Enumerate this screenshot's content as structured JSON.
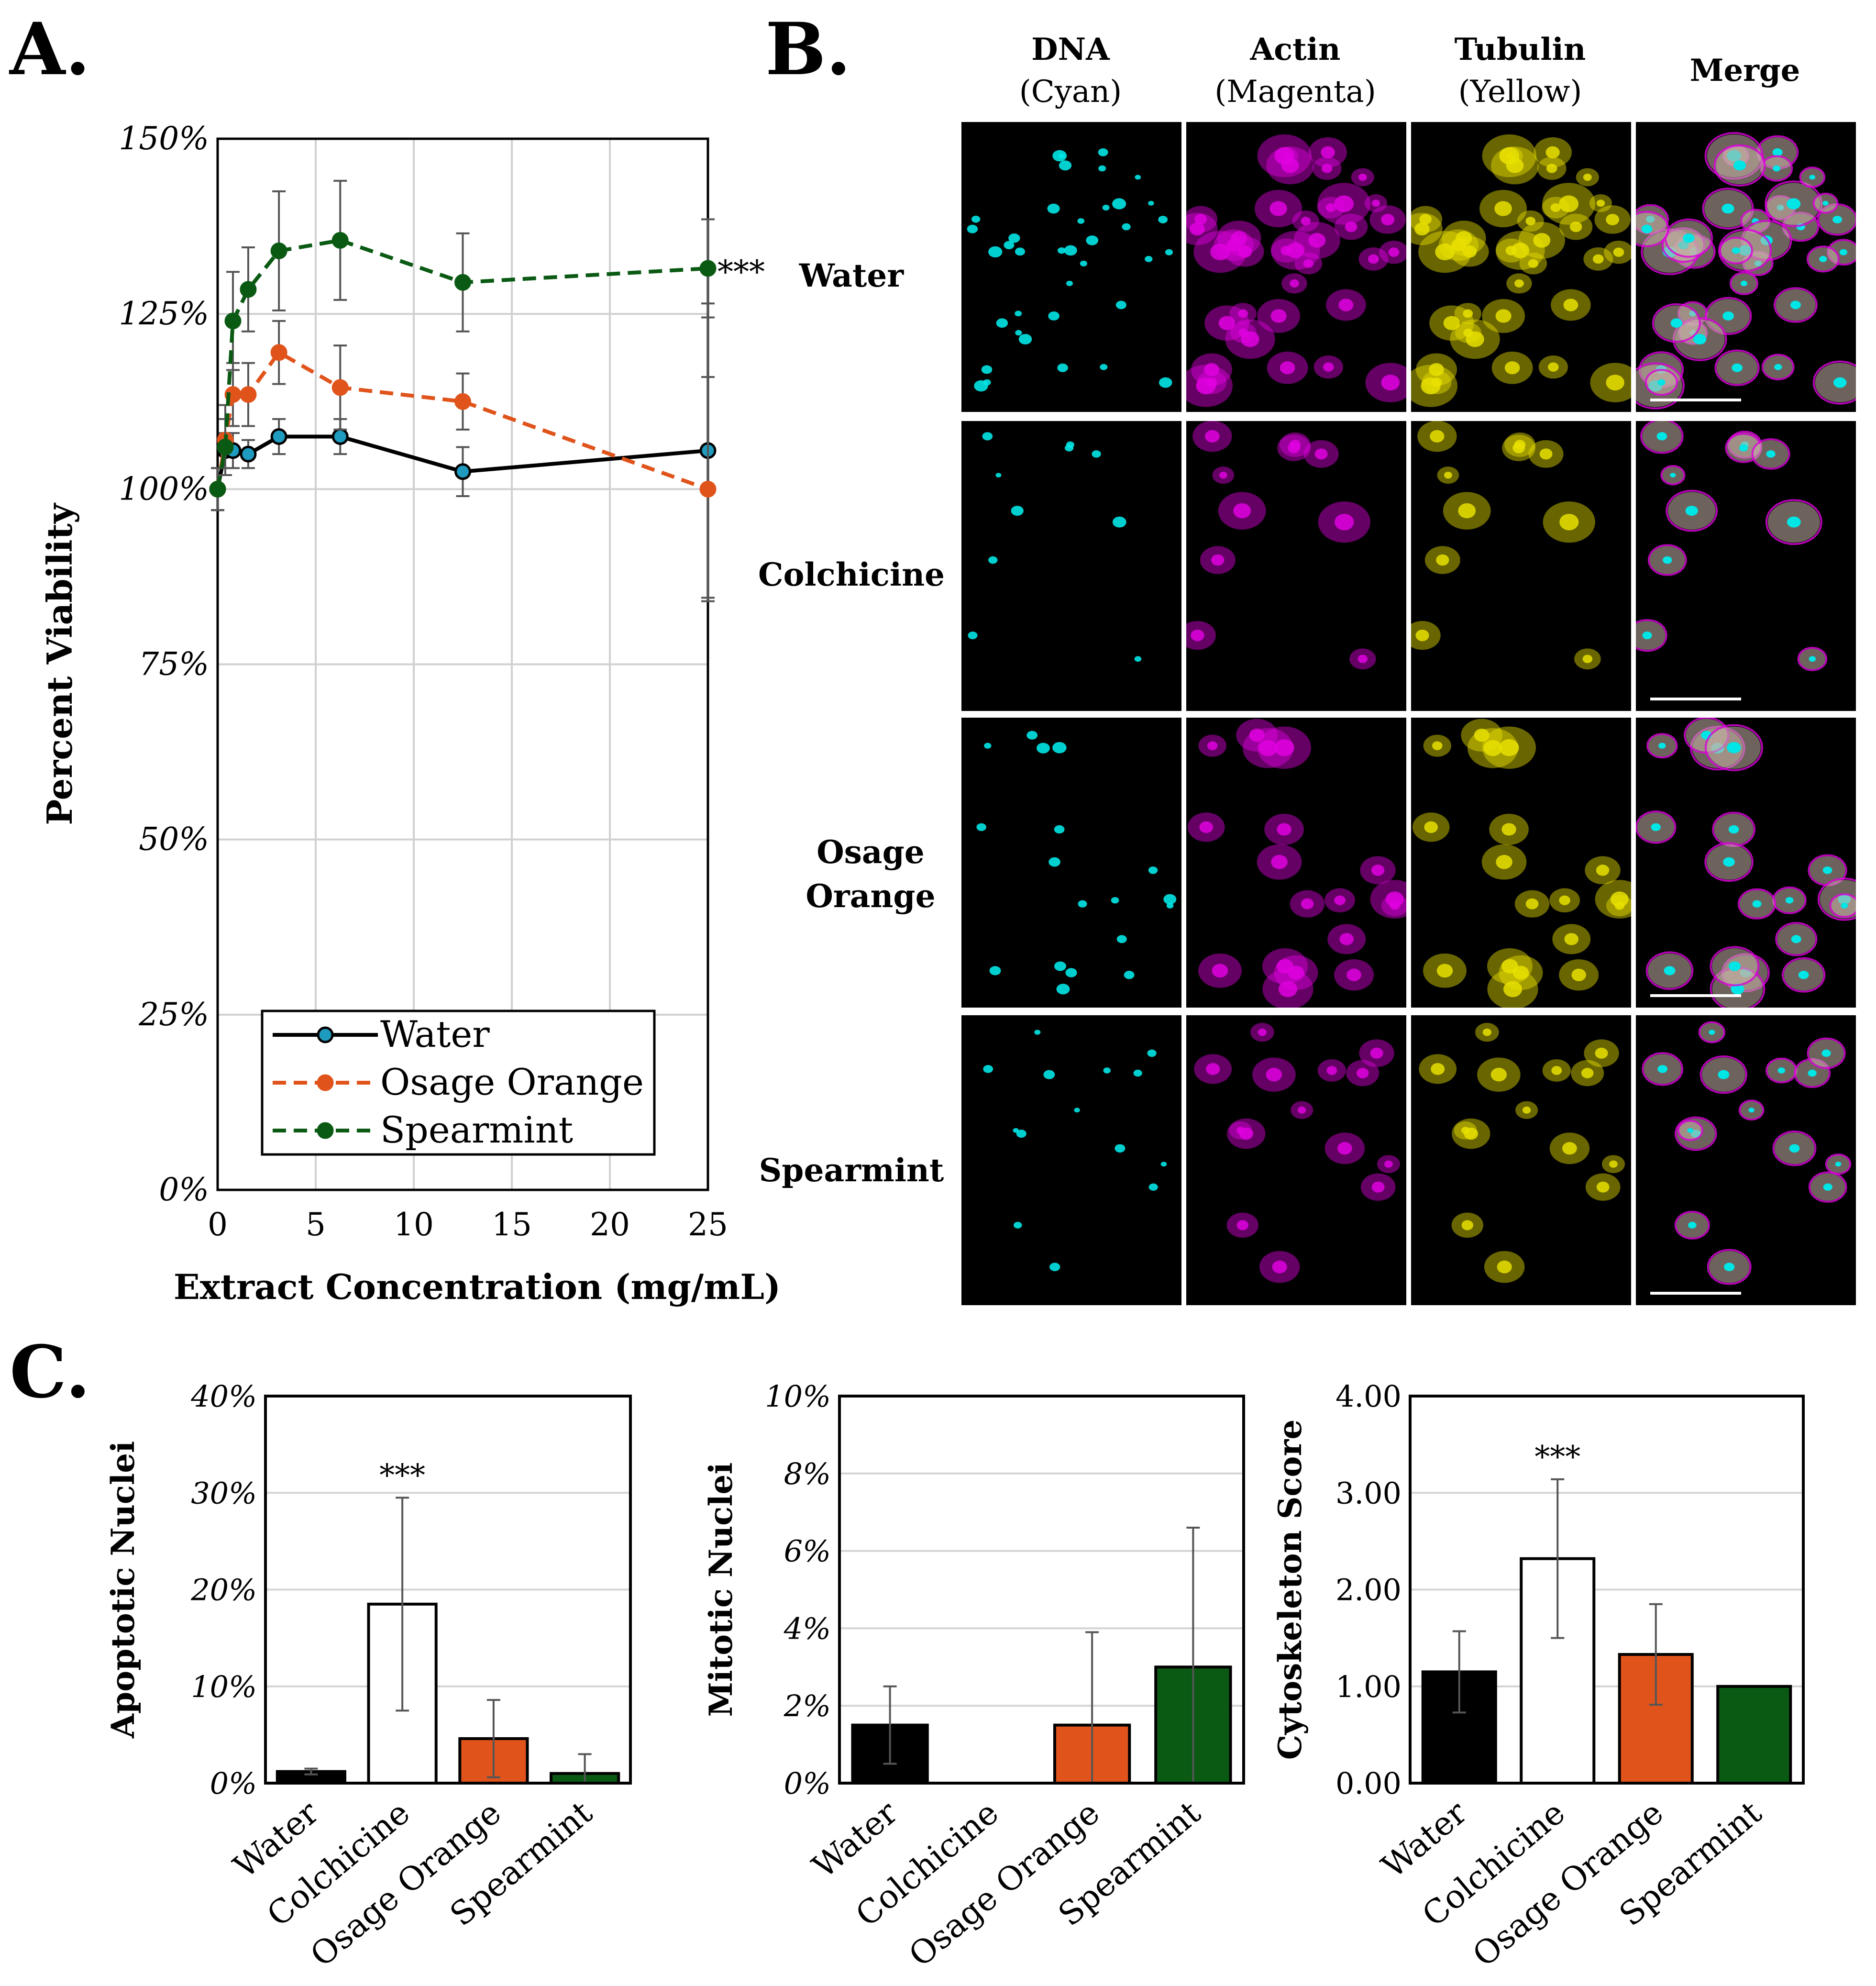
{
  "panel_labels": {
    "a": "A.",
    "b": "B.",
    "c": "C."
  },
  "microscopy": {
    "channels": [
      {
        "name": "DNA",
        "color_name": "(Cyan)",
        "color": "#00e5e5"
      },
      {
        "name": "Actin",
        "color_name": "(Magenta)",
        "color": "#e000e0"
      },
      {
        "name": "Tubulin",
        "color_name": "(Yellow)",
        "color": "#e8e000"
      },
      {
        "name": "Merge",
        "color_name": "",
        "color": "#ffffff"
      }
    ],
    "rows": [
      {
        "label": "Water"
      },
      {
        "label": "Colchicine"
      },
      {
        "label": "Osage Orange"
      },
      {
        "label": "Spearmint"
      }
    ]
  },
  "chart_data": [
    {
      "type": "line",
      "title": "",
      "xlabel": "Extract Concentration (mg/mL)",
      "ylabel": "Percent Viability",
      "xlim": [
        0,
        25
      ],
      "ylim": [
        0,
        150
      ],
      "xticks": [
        "0",
        "5",
        "10",
        "15",
        "20",
        "25"
      ],
      "yticks": [
        "0%",
        "25%",
        "50%",
        "75%",
        "100%",
        "125%",
        "150%"
      ],
      "grid": true,
      "legend_position": "bottom-left",
      "annotation": "***",
      "series": [
        {
          "name": "Water",
          "color": "#000000",
          "dash": "solid",
          "marker_fill": "#1f9bbf",
          "x": [
            0,
            0.39,
            0.78,
            1.56,
            3.125,
            6.25,
            12.5,
            25
          ],
          "y": [
            100,
            105.5,
            105.5,
            105,
            107.5,
            107.5,
            102.5,
            105.5
          ],
          "err": [
            3,
            2.5,
            2.5,
            2,
            2.5,
            2.5,
            3.5,
            21
          ]
        },
        {
          "name": "Osage Orange",
          "color": "#e0541c",
          "dash": "dashed",
          "marker_fill": "#e0541c",
          "x": [
            0,
            0.39,
            0.78,
            1.56,
            3.125,
            6.25,
            12.5,
            25
          ],
          "y": [
            100,
            107,
            113.5,
            113.5,
            119.5,
            114.5,
            112.5,
            100
          ],
          "err": [
            3,
            5,
            4.5,
            4.5,
            4.5,
            6,
            4,
            16
          ]
        },
        {
          "name": "Spearmint",
          "color": "#0b5a14",
          "dash": "dashed",
          "marker_fill": "#0b5a14",
          "x": [
            0,
            0.39,
            0.78,
            1.56,
            3.125,
            6.25,
            12.5,
            25
          ],
          "y": [
            100,
            106,
            124,
            128.5,
            134,
            135.5,
            129.5,
            131.5
          ],
          "err": [
            3,
            4,
            7,
            6,
            8.5,
            8.5,
            7,
            7
          ]
        }
      ]
    },
    {
      "type": "bar",
      "ylabel": "Apoptotic Nuclei",
      "categories": [
        "Water",
        "Colchicine",
        "Osage Orange",
        "Spearmint"
      ],
      "values": [
        1.2,
        18.5,
        4.6,
        1.0
      ],
      "errors": [
        0.3,
        11,
        4,
        2
      ],
      "bar_colors": [
        "#000000",
        "#ffffff",
        "#e0541c",
        "#0b5a14"
      ],
      "ylim": [
        0,
        40
      ],
      "yticks": [
        "0%",
        "10%",
        "20%",
        "30%",
        "40%"
      ],
      "annotation": "***"
    },
    {
      "type": "bar",
      "ylabel": "Mitotic Nuclei",
      "categories": [
        "Water",
        "Colchicine",
        "Osage Orange",
        "Spearmint"
      ],
      "values": [
        1.5,
        0,
        1.5,
        3.0
      ],
      "errors": [
        1.0,
        0,
        2.4,
        3.6
      ],
      "bar_colors": [
        "#000000",
        "#ffffff",
        "#e0541c",
        "#0b5a14"
      ],
      "ylim": [
        0,
        10
      ],
      "yticks": [
        "0%",
        "2%",
        "4%",
        "6%",
        "8%",
        "10%"
      ]
    },
    {
      "type": "bar",
      "ylabel": "Cytoskeleton Score",
      "categories": [
        "Water",
        "Colchicine",
        "Osage Orange",
        "Spearmint"
      ],
      "values": [
        1.15,
        2.32,
        1.33,
        1.0
      ],
      "errors": [
        0.42,
        0.82,
        0.52,
        0
      ],
      "bar_colors": [
        "#000000",
        "#ffffff",
        "#e0541c",
        "#0b5a14"
      ],
      "ylim": [
        0,
        4
      ],
      "yticks": [
        "0.00",
        "1.00",
        "2.00",
        "3.00",
        "4.00"
      ],
      "annotation": "***"
    }
  ]
}
